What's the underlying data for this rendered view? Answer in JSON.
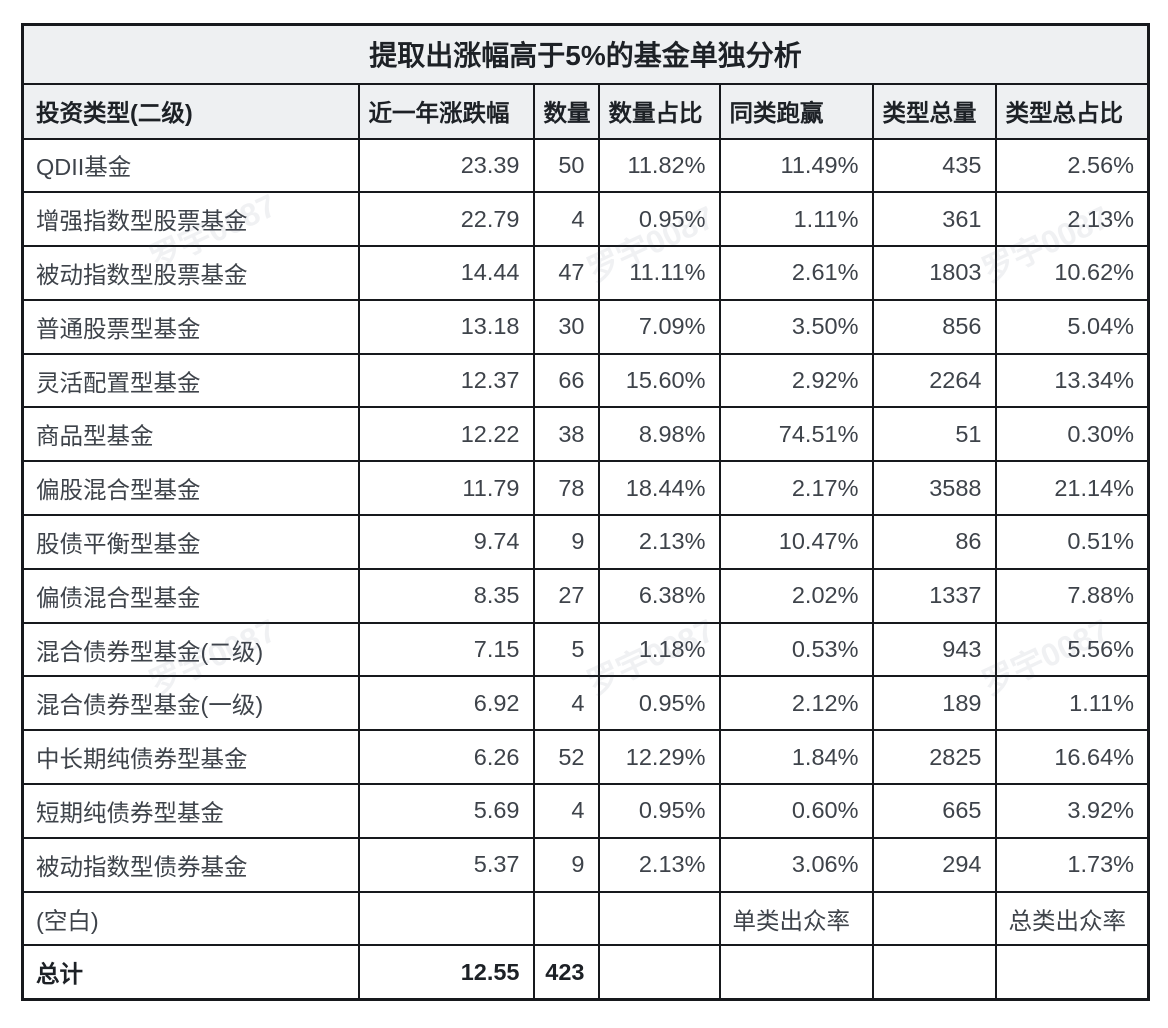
{
  "watermark": {
    "text": "罗宇0087"
  },
  "chart_data": {
    "type": "table",
    "title": "提取出涨幅高于5%的基金单独分析",
    "columns": [
      "投资类型(二级)",
      "近一年涨跌幅",
      "数量",
      "数量占比",
      "同类跑赢",
      "类型总量",
      "类型总占比"
    ],
    "rows": [
      {
        "cells": [
          "QDII基金",
          "23.39",
          "50",
          "11.82%",
          "11.49%",
          "435",
          "2.56%"
        ]
      },
      {
        "cells": [
          "增强指数型股票基金",
          "22.79",
          "4",
          "0.95%",
          "1.11%",
          "361",
          "2.13%"
        ]
      },
      {
        "cells": [
          "被动指数型股票基金",
          "14.44",
          "47",
          "11.11%",
          "2.61%",
          "1803",
          "10.62%"
        ]
      },
      {
        "cells": [
          "普通股票型基金",
          "13.18",
          "30",
          "7.09%",
          "3.50%",
          "856",
          "5.04%"
        ]
      },
      {
        "cells": [
          "灵活配置型基金",
          "12.37",
          "66",
          "15.60%",
          "2.92%",
          "2264",
          "13.34%"
        ]
      },
      {
        "cells": [
          "商品型基金",
          "12.22",
          "38",
          "8.98%",
          "74.51%",
          "51",
          "0.30%"
        ]
      },
      {
        "cells": [
          "偏股混合型基金",
          "11.79",
          "78",
          "18.44%",
          "2.17%",
          "3588",
          "21.14%"
        ]
      },
      {
        "cells": [
          "股债平衡型基金",
          "9.74",
          "9",
          "2.13%",
          "10.47%",
          "86",
          "0.51%"
        ]
      },
      {
        "cells": [
          "偏债混合型基金",
          "8.35",
          "27",
          "6.38%",
          "2.02%",
          "1337",
          "7.88%"
        ]
      },
      {
        "cells": [
          "混合债券型基金(二级)",
          "7.15",
          "5",
          "1.18%",
          "0.53%",
          "943",
          "5.56%"
        ]
      },
      {
        "cells": [
          "混合债券型基金(一级)",
          "6.92",
          "4",
          "0.95%",
          "2.12%",
          "189",
          "1.11%"
        ]
      },
      {
        "cells": [
          "中长期纯债券型基金",
          "6.26",
          "52",
          "12.29%",
          "1.84%",
          "2825",
          "16.64%"
        ]
      },
      {
        "cells": [
          "短期纯债券型基金",
          "5.69",
          "4",
          "0.95%",
          "0.60%",
          "665",
          "3.92%"
        ]
      },
      {
        "cells": [
          "被动指数型债券基金",
          "5.37",
          "9",
          "2.13%",
          "3.06%",
          "294",
          "1.73%"
        ]
      },
      {
        "cells": [
          "(空白)",
          "",
          "",
          "",
          "单类出众率",
          "",
          "总类出众率"
        ]
      },
      {
        "cells": [
          "总计",
          "12.55",
          "423",
          "",
          "",
          "",
          ""
        ],
        "bold": true
      }
    ]
  }
}
